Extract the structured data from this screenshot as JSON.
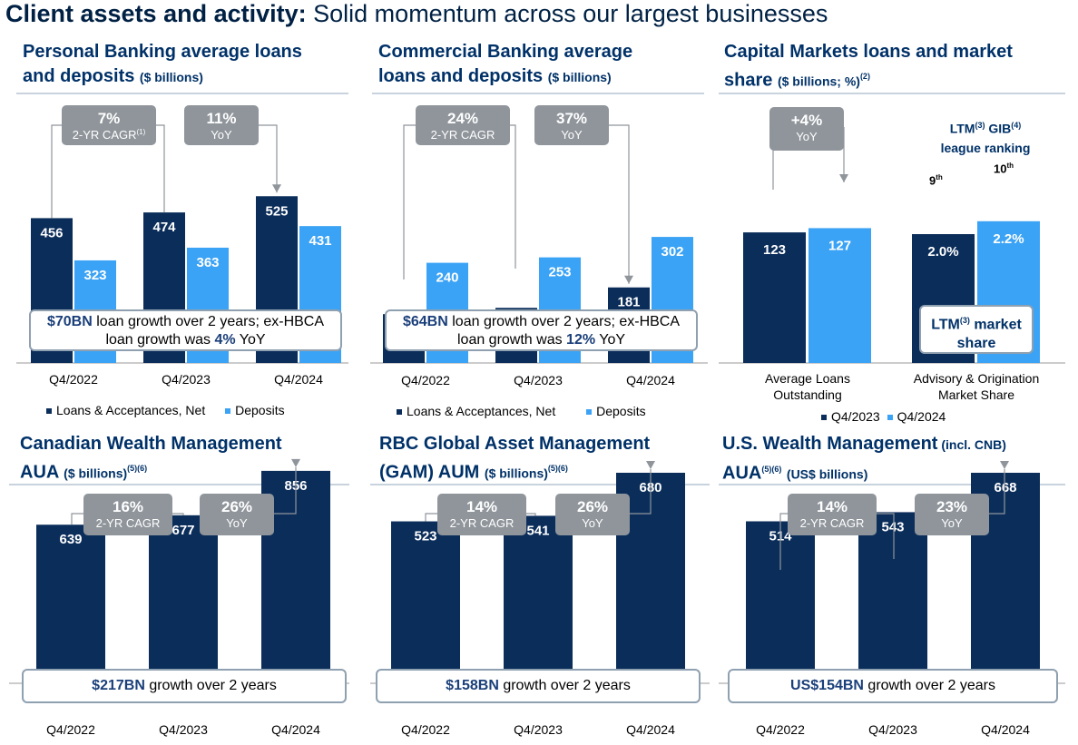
{
  "header": {
    "title_bold": "Client assets and activity:",
    "title_rest": "Solid momentum across our largest businesses"
  },
  "colors": {
    "dark": "#0b2d5a",
    "light": "#3ba3f5",
    "callout": "#8f959b",
    "title": "#003168"
  },
  "legend": {
    "loans": "Loans & Acceptances, Net",
    "deposits": "Deposits",
    "q2023": "Q4/2023",
    "q2024": "Q4/2024"
  },
  "panels": {
    "pb": {
      "title_l1": "Personal Banking average loans",
      "title_l2": "and deposits",
      "unit": "($ billions)",
      "callout1_value": "7%",
      "callout1_label": "2-YR CAGR",
      "callout1_sup": "(1)",
      "callout2_value": "11%",
      "callout2_label": "YoY",
      "note_hl": "$70BN",
      "note_text1": " loan growth over 2 years; ex-HBCA",
      "note_text2": "loan growth was ",
      "note_hl2": "4%",
      "note_text3": " YoY"
    },
    "cb": {
      "title_l1": "Commercial Banking average",
      "title_l2": "loans and deposits",
      "unit": "($ billions)",
      "callout1_value": "24%",
      "callout1_label": "2-YR CAGR",
      "callout2_value": "37%",
      "callout2_label": "YoY",
      "note_hl": "$64BN",
      "note_text1": " loan growth over 2 years; ex-HBCA",
      "note_text2": "loan growth was ",
      "note_hl2": "12%",
      "note_text3": " YoY"
    },
    "cm": {
      "title_l1": "Capital Markets loans and market",
      "title_l2": "share",
      "unit": "($ billions; %)",
      "unit_sup": "(2)",
      "callout1_value": "+4%",
      "callout1_label": "YoY",
      "ranking_l1": "LTM",
      "ranking_sup1": "(3)",
      "ranking_l1b": " GIB",
      "ranking_sup2": "(4)",
      "ranking_l2": "league ranking",
      "rank_2023": "9",
      "rank_2023_sup": "th",
      "rank_2024": "10",
      "rank_2024_sup": "th",
      "share_box_l1": "LTM",
      "share_box_sup": "(3)",
      "share_box_l1b": " market",
      "share_box_l2": "share",
      "cat1_l1": "Average Loans",
      "cat1_l2": "Outstanding",
      "cat2_l1": "Advisory & Origination",
      "cat2_l2": "Market Share"
    },
    "cwm": {
      "title_l1": "Canadian Wealth Management",
      "title_l2": "AUA",
      "unit": "($ billions)",
      "unit_sup": "(5)(6)",
      "callout1_value": "16%",
      "callout1_label": "2-YR CAGR",
      "callout2_value": "26%",
      "callout2_label": "YoY",
      "note_hl": "$217BN",
      "note_text1": " growth over 2 years"
    },
    "gam": {
      "title_l1": "RBC Global Asset Management",
      "title_l2": "(GAM) AUM",
      "unit": "($ billions)",
      "unit_sup": "(5)(6)",
      "callout1_value": "14%",
      "callout1_label": "2-YR CAGR",
      "callout2_value": "26%",
      "callout2_label": "YoY",
      "note_hl": "$158BN",
      "note_text1": " growth over 2 years"
    },
    "uswm": {
      "title_l1": "U.S. Wealth Management",
      "title_l1_small": " (incl. CNB)",
      "title_l2": "AUA",
      "title_l2_sup": "(5)(6)",
      "unit": "(US$ billions)",
      "callout1_value": "14%",
      "callout1_label": "2-YR CAGR",
      "callout2_value": "23%",
      "callout2_label": "YoY",
      "note_hl": "US$154BN",
      "note_text1": " growth over 2 years"
    }
  },
  "chart_data": [
    {
      "id": "pb",
      "type": "bar",
      "categories": [
        "Q4/2022",
        "Q4/2023",
        "Q4/2024"
      ],
      "series": [
        {
          "name": "Loans & Acceptances, Net",
          "values": [
            456,
            474,
            525
          ]
        },
        {
          "name": "Deposits",
          "values": [
            323,
            363,
            431
          ]
        }
      ]
    },
    {
      "id": "cb",
      "type": "bar",
      "categories": [
        "Q4/2022",
        "Q4/2023",
        "Q4/2024"
      ],
      "series": [
        {
          "name": "Loans & Acceptances, Net",
          "values": [
            117,
            132,
            181
          ]
        },
        {
          "name": "Deposits",
          "values": [
            240,
            253,
            302
          ]
        }
      ]
    },
    {
      "id": "cm",
      "type": "bar",
      "categories": [
        "Average Loans Outstanding",
        "Advisory & Origination Market Share"
      ],
      "series": [
        {
          "name": "Q4/2023",
          "values": [
            123,
            2.0
          ],
          "labels": [
            "123",
            "2.0%"
          ]
        },
        {
          "name": "Q4/2024",
          "values": [
            127,
            2.2
          ],
          "labels": [
            "127",
            "2.2%"
          ]
        }
      ]
    },
    {
      "id": "cwm",
      "type": "bar",
      "categories": [
        "Q4/2022",
        "Q4/2023",
        "Q4/2024"
      ],
      "series": [
        {
          "values": [
            639,
            677,
            856
          ]
        }
      ]
    },
    {
      "id": "gam",
      "type": "bar",
      "categories": [
        "Q4/2022",
        "Q4/2023",
        "Q4/2024"
      ],
      "series": [
        {
          "values": [
            523,
            541,
            680
          ]
        }
      ]
    },
    {
      "id": "uswm",
      "type": "bar",
      "categories": [
        "Q4/2022",
        "Q4/2023",
        "Q4/2024"
      ],
      "series": [
        {
          "values": [
            514,
            543,
            668
          ]
        }
      ]
    }
  ]
}
